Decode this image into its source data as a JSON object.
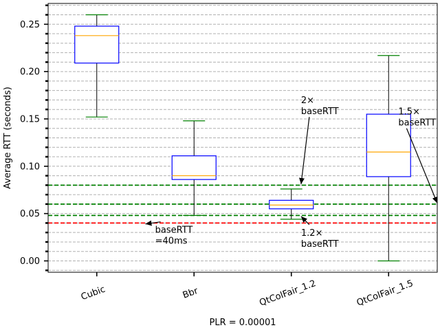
{
  "chart_data": {
    "type": "box",
    "title": "",
    "xlabel": "PLR = 0.00001",
    "ylabel": "Average RTT (seconds)",
    "ylim": [
      -0.012,
      0.272
    ],
    "yticks": [
      0.0,
      0.05,
      0.1,
      0.15,
      0.2,
      0.25
    ],
    "ytick_labels": [
      "0.00",
      "0.05",
      "0.10",
      "0.15",
      "0.20",
      "0.25"
    ],
    "grid": "horizontal dashed minor",
    "categories": [
      "Cubic",
      "Bbr",
      "QtColFair_1.2",
      "QtColFair_1.5"
    ],
    "boxes": [
      {
        "whisker_low": 0.152,
        "q1": 0.209,
        "median": 0.238,
        "q3": 0.248,
        "whisker_high": 0.26
      },
      {
        "whisker_low": 0.048,
        "q1": 0.086,
        "median": 0.09,
        "q3": 0.111,
        "whisker_high": 0.148
      },
      {
        "whisker_low": 0.044,
        "q1": 0.055,
        "median": 0.059,
        "q3": 0.064,
        "whisker_high": 0.076
      },
      {
        "whisker_low": 0.0,
        "q1": 0.089,
        "median": 0.115,
        "q3": 0.155,
        "whisker_high": 0.217
      }
    ],
    "reference_lines": [
      {
        "y": 0.08,
        "color": "#008000"
      },
      {
        "y": 0.06,
        "color": "#008000"
      },
      {
        "y": 0.048,
        "color": "#008000"
      },
      {
        "y": 0.04,
        "color": "#ff0000"
      }
    ],
    "annotations": [
      {
        "lines": [
          "baseRTT",
          "=40ms"
        ],
        "text_x": 0.6,
        "text_y": 0.018,
        "arrow_x": 0.5,
        "arrow_y": 0.039
      },
      {
        "lines": [
          "2×",
          "baseRTT"
        ],
        "text_x": 2.1,
        "text_y": 0.155,
        "arrow_x": 2.1,
        "arrow_y": 0.081
      },
      {
        "lines": [
          "1.2×",
          "baseRTT"
        ],
        "text_x": 2.1,
        "text_y": 0.015,
        "arrow_x": 2.1,
        "arrow_y": 0.047
      },
      {
        "lines": [
          "1.5×",
          "baseRTT"
        ],
        "text_x": 3.1,
        "text_y": 0.143,
        "arrow_x": 3.5,
        "arrow_y": 0.061
      }
    ],
    "colors": {
      "box": "#0000ff",
      "median": "#ffa500",
      "whisker": "#000000",
      "cap": "#008000",
      "grid": "#b0b0b0"
    }
  }
}
